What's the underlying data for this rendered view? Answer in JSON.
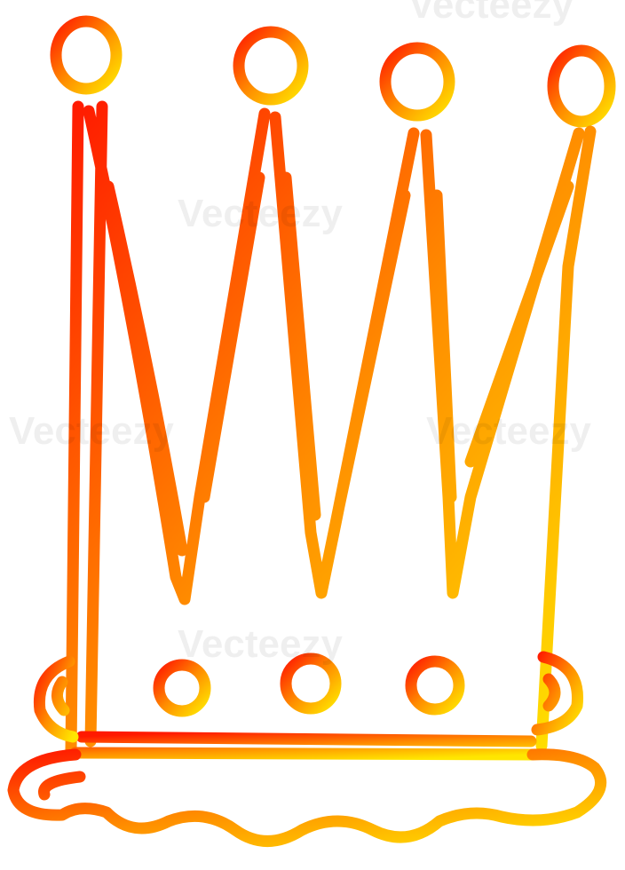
{
  "watermark": "Vecteezy"
}
